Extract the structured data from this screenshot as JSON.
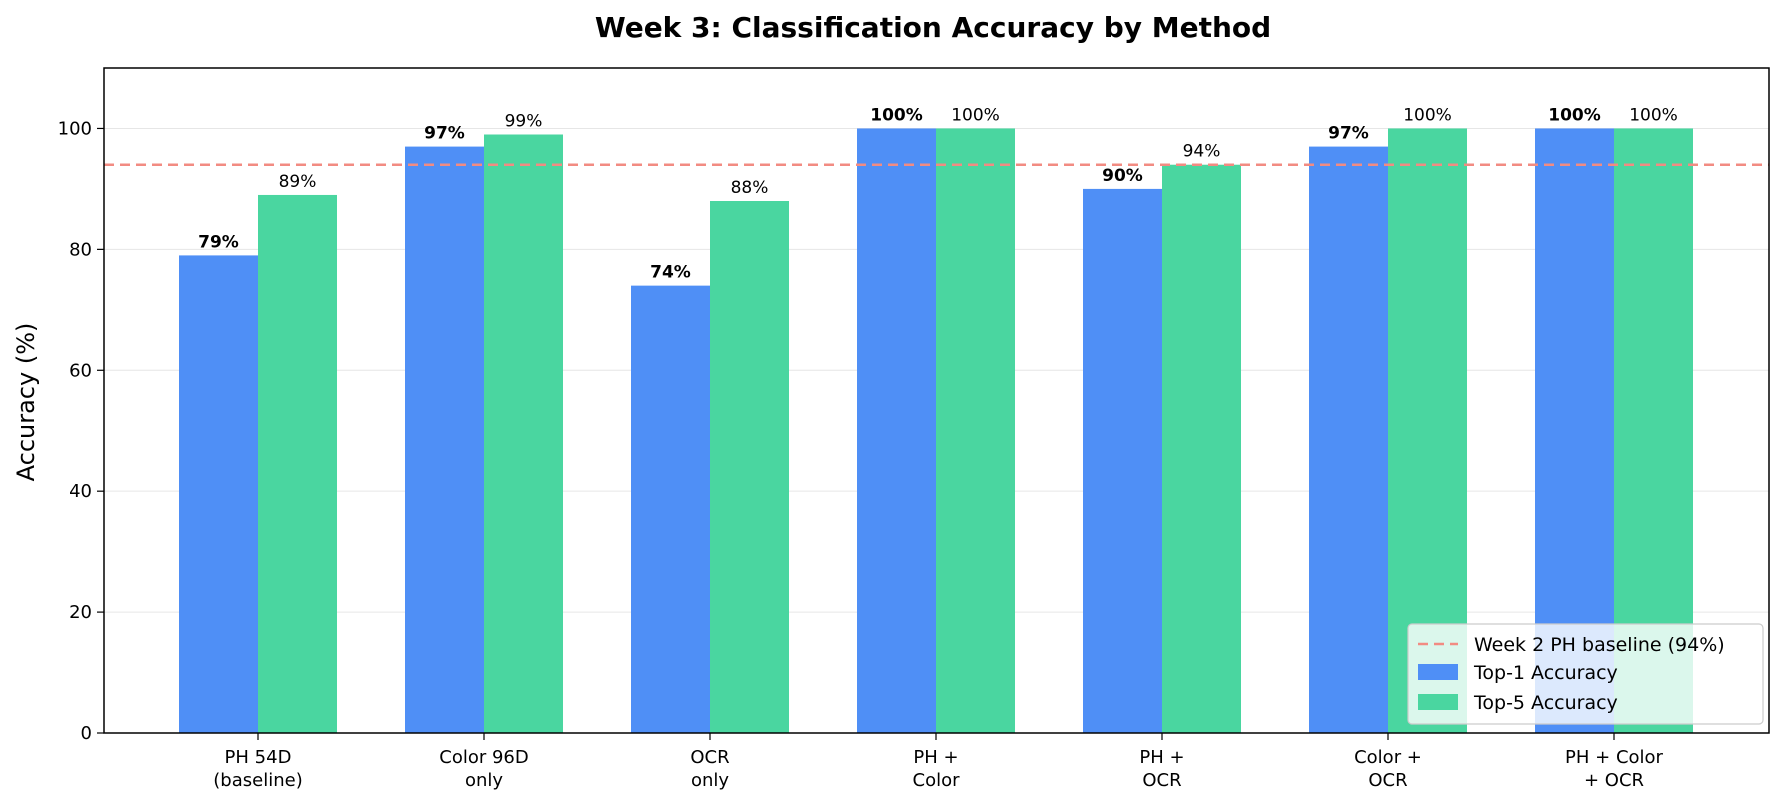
{
  "chart_data": {
    "type": "bar",
    "title": "Week 3: Classification Accuracy by Method",
    "xlabel": "",
    "ylabel": "Accuracy (%)",
    "ylim": [
      0,
      110
    ],
    "yticks": [
      "0",
      "20",
      "40",
      "60",
      "80",
      "100"
    ],
    "grid": "horizontal",
    "categories": [
      [
        "PH 54D",
        "(baseline)"
      ],
      [
        "Color 96D",
        "only"
      ],
      [
        "OCR",
        "only"
      ],
      [
        "PH +",
        "Color"
      ],
      [
        "PH +",
        "OCR"
      ],
      [
        "Color +",
        "OCR"
      ],
      [
        "PH + Color",
        "+ OCR"
      ]
    ],
    "series": [
      {
        "name": "Top-1 Accuracy",
        "color": "#4f8ff6",
        "values": [
          79,
          97,
          74,
          100,
          90,
          97,
          100
        ],
        "labels": [
          "79%",
          "97%",
          "74%",
          "100%",
          "90%",
          "97%",
          "100%"
        ],
        "label_style": "bold"
      },
      {
        "name": "Top-5 Accuracy",
        "color": "#4ad6a0",
        "values": [
          89,
          99,
          88,
          100,
          94,
          100,
          100
        ],
        "labels": [
          "89%",
          "99%",
          "88%",
          "100%",
          "94%",
          "100%",
          "100%"
        ],
        "label_style": "normal"
      }
    ],
    "reference_line": {
      "name": "Week 2 PH baseline (94%)",
      "value": 94,
      "color": "#f28b82",
      "style": "dashed"
    },
    "legend_placement": "lower-right"
  }
}
